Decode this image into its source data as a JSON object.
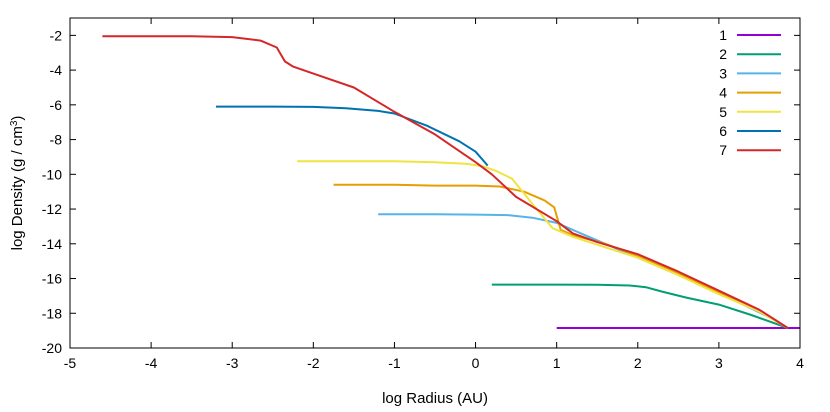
{
  "chart_data": {
    "type": "line",
    "title": "",
    "xlabel": "log Radius (AU)",
    "ylabel_prefix": "log Density (g / cm",
    "ylabel_sup": "3",
    "ylabel_suffix": ")",
    "xlim": [
      -5,
      4
    ],
    "ylim": [
      -20,
      -1
    ],
    "xticks": [
      -5,
      -4,
      -3,
      -2,
      -1,
      0,
      1,
      2,
      3,
      4
    ],
    "yticks": [
      -20,
      -18,
      -16,
      -14,
      -12,
      -10,
      -8,
      -6,
      -4,
      -2
    ],
    "legend_position": "top-right",
    "series": [
      {
        "name": "1",
        "color": "#9400d3",
        "points": [
          [
            1.0,
            -18.85
          ],
          [
            2.0,
            -18.85
          ],
          [
            3.0,
            -18.85
          ],
          [
            3.85,
            -18.85
          ],
          [
            4.0,
            -18.85
          ]
        ]
      },
      {
        "name": "2",
        "color": "#009e73",
        "points": [
          [
            0.2,
            -16.35
          ],
          [
            1.0,
            -16.35
          ],
          [
            1.5,
            -16.36
          ],
          [
            1.9,
            -16.4
          ],
          [
            2.1,
            -16.5
          ],
          [
            2.3,
            -16.75
          ],
          [
            2.6,
            -17.1
          ],
          [
            3.0,
            -17.5
          ],
          [
            3.4,
            -18.1
          ],
          [
            3.7,
            -18.6
          ],
          [
            3.85,
            -18.85
          ]
        ]
      },
      {
        "name": "3",
        "color": "#56b4e9",
        "points": [
          [
            -1.2,
            -12.3
          ],
          [
            -0.5,
            -12.3
          ],
          [
            0.0,
            -12.32
          ],
          [
            0.4,
            -12.35
          ],
          [
            0.7,
            -12.5
          ],
          [
            1.0,
            -12.8
          ],
          [
            1.3,
            -13.4
          ],
          [
            1.7,
            -14.2
          ],
          [
            2.2,
            -15.2
          ],
          [
            2.8,
            -16.4
          ],
          [
            3.3,
            -17.5
          ],
          [
            3.7,
            -18.4
          ],
          [
            3.85,
            -18.85
          ]
        ]
      },
      {
        "name": "4",
        "color": "#e69f00",
        "points": [
          [
            -1.75,
            -10.6
          ],
          [
            -1.0,
            -10.6
          ],
          [
            -0.5,
            -10.65
          ],
          [
            0.0,
            -10.65
          ],
          [
            0.3,
            -10.7
          ],
          [
            0.6,
            -11.0
          ],
          [
            0.85,
            -11.5
          ],
          [
            0.97,
            -11.9
          ],
          [
            1.05,
            -13.2
          ],
          [
            1.2,
            -13.5
          ],
          [
            1.6,
            -14.0
          ],
          [
            2.0,
            -14.7
          ],
          [
            2.5,
            -15.7
          ],
          [
            3.0,
            -16.8
          ],
          [
            3.5,
            -17.9
          ],
          [
            3.85,
            -18.85
          ]
        ]
      },
      {
        "name": "5",
        "color": "#f0e442",
        "points": [
          [
            -2.2,
            -9.25
          ],
          [
            -1.0,
            -9.25
          ],
          [
            -0.5,
            -9.3
          ],
          [
            -0.1,
            -9.4
          ],
          [
            0.1,
            -9.55
          ],
          [
            0.25,
            -9.8
          ],
          [
            0.45,
            -10.25
          ],
          [
            0.7,
            -11.7
          ],
          [
            0.95,
            -13.1
          ],
          [
            1.2,
            -13.6
          ],
          [
            1.6,
            -14.2
          ],
          [
            2.0,
            -14.8
          ],
          [
            2.5,
            -15.8
          ],
          [
            3.0,
            -16.9
          ],
          [
            3.5,
            -17.9
          ],
          [
            3.85,
            -18.85
          ]
        ]
      },
      {
        "name": "6",
        "color": "#0072b2",
        "points": [
          [
            -3.2,
            -6.1
          ],
          [
            -2.5,
            -6.1
          ],
          [
            -2.0,
            -6.12
          ],
          [
            -1.6,
            -6.2
          ],
          [
            -1.2,
            -6.35
          ],
          [
            -1.0,
            -6.5
          ],
          [
            -0.6,
            -7.2
          ],
          [
            -0.2,
            -8.1
          ],
          [
            0.0,
            -8.7
          ],
          [
            0.15,
            -9.5
          ]
        ]
      },
      {
        "name": "7",
        "color": "#d62728",
        "points": [
          [
            -4.6,
            -2.05
          ],
          [
            -3.5,
            -2.05
          ],
          [
            -3.0,
            -2.1
          ],
          [
            -2.65,
            -2.3
          ],
          [
            -2.45,
            -2.7
          ],
          [
            -2.35,
            -3.5
          ],
          [
            -2.25,
            -3.8
          ],
          [
            -2.0,
            -4.2
          ],
          [
            -1.5,
            -5.0
          ],
          [
            -1.0,
            -6.4
          ],
          [
            -0.5,
            -7.7
          ],
          [
            0.0,
            -9.3
          ],
          [
            0.2,
            -10.0
          ],
          [
            0.5,
            -11.3
          ],
          [
            1.0,
            -12.7
          ],
          [
            1.2,
            -13.4
          ],
          [
            1.5,
            -13.9
          ],
          [
            2.0,
            -14.6
          ],
          [
            2.5,
            -15.6
          ],
          [
            3.0,
            -16.7
          ],
          [
            3.5,
            -17.8
          ],
          [
            3.85,
            -18.85
          ]
        ]
      }
    ]
  }
}
